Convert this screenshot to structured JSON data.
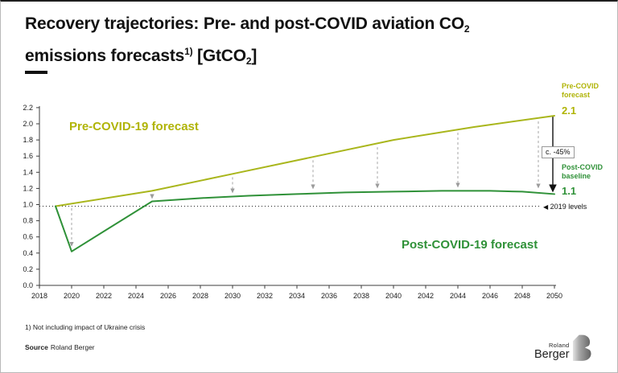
{
  "page": {
    "title": {
      "line1": "Recovery trajectories: Pre- and post-COVID aviation CO",
      "line1_sub": "2",
      "line2_a": "emissions forecasts",
      "line2_sup": "1)",
      "line2_b": " [GtCO",
      "line2_sub": "2",
      "line2_c": "]"
    },
    "footnote": "1) Not including impact of Ukraine crisis",
    "source": {
      "label": "Source",
      "value": "Roland Berger"
    },
    "logo": {
      "top": "Roland",
      "bottom": "Berger"
    }
  },
  "chart_data": {
    "type": "line",
    "title": "Pre- and post-COVID aviation CO2 emissions forecasts",
    "unit": "GtCO2",
    "xlim": [
      2018,
      2050
    ],
    "ylim": [
      0.0,
      2.2
    ],
    "grid": false,
    "x_ticks": [
      2018,
      2020,
      2022,
      2024,
      2026,
      2028,
      2030,
      2032,
      2034,
      2036,
      2038,
      2040,
      2042,
      2044,
      2046,
      2048,
      2050
    ],
    "y_ticks": [
      "0.0",
      "0.2",
      "0.4",
      "0.6",
      "0.8",
      "1.0",
      "1.2",
      "1.4",
      "1.6",
      "1.8",
      "2.0",
      "2.2"
    ],
    "series": [
      {
        "name": "Pre-COVID-19 forecast",
        "color": "#a9b61c",
        "points": [
          [
            2019,
            0.98
          ],
          [
            2025,
            1.17
          ],
          [
            2030,
            1.38
          ],
          [
            2035,
            1.59
          ],
          [
            2040,
            1.8
          ],
          [
            2045,
            1.96
          ],
          [
            2050,
            2.1
          ]
        ]
      },
      {
        "name": "Post-COVID-19 forecast",
        "color": "#2f9138",
        "points": [
          [
            2019,
            0.98
          ],
          [
            2020,
            0.42
          ],
          [
            2025,
            1.04
          ],
          [
            2028,
            1.08
          ],
          [
            2031,
            1.11
          ],
          [
            2034,
            1.13
          ],
          [
            2037,
            1.15
          ],
          [
            2040,
            1.16
          ],
          [
            2043,
            1.17
          ],
          [
            2046,
            1.17
          ],
          [
            2048,
            1.16
          ],
          [
            2050,
            1.13
          ]
        ]
      }
    ],
    "baseline": {
      "marker": "◀",
      "label": "2019 levels",
      "value": 0.98
    },
    "gap_arrows": [
      {
        "x": 2020,
        "from": 0.955,
        "to": 0.49
      },
      {
        "x": 2025,
        "from": 1.13,
        "to": 1.08
      },
      {
        "x": 2030,
        "from": 1.34,
        "to": 1.15
      },
      {
        "x": 2035,
        "from": 1.55,
        "to": 1.2
      },
      {
        "x": 2039,
        "from": 1.71,
        "to": 1.21
      },
      {
        "x": 2044,
        "from": 1.89,
        "to": 1.22
      },
      {
        "x": 2049,
        "from": 2.03,
        "to": 1.21
      }
    ],
    "final_arrow": {
      "x": 2049.9,
      "from": 2.09,
      "to": 1.165,
      "label": "c. -45%"
    },
    "annotations": {
      "pre_label": "Pre-COVID forecast",
      "pre_value": "2.1",
      "post_label": "Post-COVID baseline",
      "post_value": "1.1"
    }
  }
}
